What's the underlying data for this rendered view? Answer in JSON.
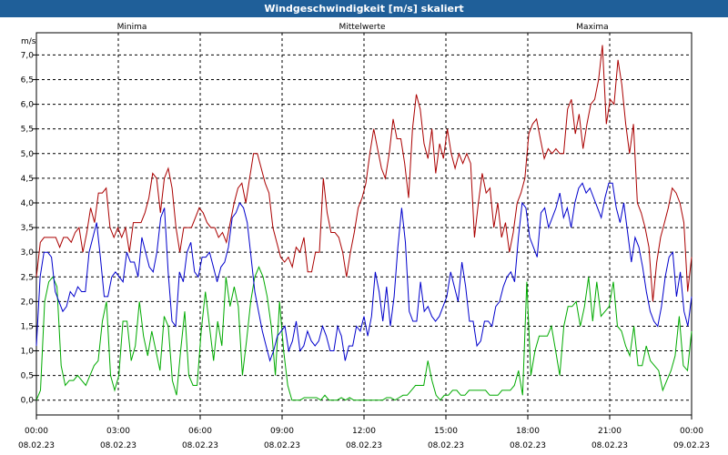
{
  "window": {
    "title": "Windgeschwindigkeit [m/s] skaliert"
  },
  "chart_data": {
    "type": "line",
    "title": "Windgeschwindigkeit [m/s] skaliert",
    "ylabel": "m/s",
    "ylim": [
      -0.3,
      7.45
    ],
    "xlim": [
      0,
      24
    ],
    "grid": true,
    "legend": "top",
    "yticks": [
      "0,0",
      "0,5",
      "1,0",
      "1,5",
      "2,0",
      "2,5",
      "3,0",
      "3,5",
      "4,0",
      "4,5",
      "5,0",
      "5,5",
      "6,0",
      "6,5",
      "7,0"
    ],
    "xticks": [
      {
        "time": "00:00",
        "date": "08.02.23"
      },
      {
        "time": "03:00",
        "date": "08.02.23"
      },
      {
        "time": "06:00",
        "date": "08.02.23"
      },
      {
        "time": "09:00",
        "date": "08.02.23"
      },
      {
        "time": "12:00",
        "date": "08.02.23"
      },
      {
        "time": "15:00",
        "date": "08.02.23"
      },
      {
        "time": "18:00",
        "date": "08.02.23"
      },
      {
        "time": "21:00",
        "date": "08.02.23"
      },
      {
        "time": "00:00",
        "date": "09.02.23"
      }
    ],
    "series": [
      {
        "name": "Minima",
        "color": "#00aa00",
        "values": [
          0.0,
          0.2,
          2.0,
          2.4,
          2.5,
          2.3,
          0.7,
          0.3,
          0.4,
          0.4,
          0.5,
          0.4,
          0.3,
          0.5,
          0.7,
          0.8,
          1.6,
          2.0,
          0.5,
          0.2,
          0.5,
          1.6,
          1.6,
          0.8,
          1.1,
          2.0,
          1.3,
          0.9,
          1.4,
          1.0,
          0.6,
          1.7,
          1.5,
          0.4,
          0.1,
          1.0,
          1.8,
          0.5,
          0.3,
          0.3,
          1.4,
          2.2,
          1.5,
          0.8,
          1.6,
          1.1,
          2.5,
          1.9,
          2.3,
          1.9,
          0.5,
          1.2,
          2.0,
          2.5,
          2.7,
          2.5,
          2.1,
          1.5,
          0.5,
          2.0,
          1.0,
          0.3,
          0.0,
          0.0,
          0.0,
          0.05,
          0.05,
          0.05,
          0.05,
          0.0,
          0.1,
          0.0,
          0.0,
          0.0,
          0.05,
          0.0,
          0.05,
          0.0,
          0.0,
          0.0,
          0.0,
          0.0,
          0.0,
          0.0,
          0.0,
          0.05,
          0.05,
          0.0,
          0.05,
          0.1,
          0.1,
          0.2,
          0.3,
          0.3,
          0.3,
          0.8,
          0.4,
          0.1,
          0.0,
          0.1,
          0.1,
          0.2,
          0.2,
          0.1,
          0.1,
          0.2,
          0.2,
          0.2,
          0.2,
          0.2,
          0.1,
          0.1,
          0.1,
          0.2,
          0.2,
          0.2,
          0.3,
          0.6,
          0.1,
          2.4,
          0.5,
          1.0,
          1.3,
          1.3,
          1.3,
          1.5,
          1.0,
          0.5,
          1.5,
          1.9,
          1.9,
          2.0,
          1.5,
          1.9,
          2.5,
          1.6,
          2.4,
          1.7,
          1.8,
          1.9,
          2.4,
          1.5,
          1.4,
          1.1,
          0.9,
          1.5,
          0.7,
          0.7,
          1.1,
          0.8,
          0.7,
          0.6,
          0.2,
          0.4,
          0.6,
          0.9,
          1.7,
          0.7,
          0.6,
          1.4
        ]
      },
      {
        "name": "Mittelwerte",
        "color": "#0000cc",
        "values": [
          1.1,
          2.5,
          3.0,
          3.0,
          2.9,
          2.2,
          2.0,
          1.8,
          1.9,
          2.2,
          2.1,
          2.3,
          2.2,
          2.2,
          3.0,
          3.3,
          3.6,
          2.9,
          2.1,
          2.1,
          2.5,
          2.6,
          2.5,
          2.4,
          3.0,
          2.8,
          2.8,
          2.5,
          3.3,
          3.0,
          2.7,
          2.6,
          3.0,
          3.7,
          3.9,
          2.6,
          1.6,
          1.5,
          2.6,
          2.4,
          3.0,
          3.2,
          2.6,
          2.5,
          2.9,
          2.9,
          3.0,
          2.7,
          2.4,
          2.7,
          2.8,
          3.1,
          3.7,
          3.8,
          4.0,
          3.9,
          3.6,
          2.9,
          2.2,
          1.8,
          1.4,
          1.1,
          0.8,
          1.0,
          1.3,
          1.4,
          1.5,
          1.0,
          1.2,
          1.6,
          1.0,
          1.1,
          1.4,
          1.2,
          1.1,
          1.2,
          1.5,
          1.3,
          1.0,
          1.0,
          1.5,
          1.3,
          0.8,
          1.1,
          1.1,
          1.5,
          1.4,
          1.7,
          1.3,
          1.7,
          2.6,
          2.2,
          1.6,
          2.3,
          1.5,
          2.1,
          3.1,
          3.9,
          3.2,
          1.8,
          1.6,
          1.6,
          2.4,
          1.8,
          1.9,
          1.7,
          1.6,
          1.7,
          1.9,
          2.1,
          2.6,
          2.3,
          2.0,
          2.8,
          2.3,
          1.6,
          1.6,
          1.1,
          1.2,
          1.6,
          1.6,
          1.5,
          1.9,
          2.0,
          2.3,
          2.5,
          2.6,
          2.4,
          3.3,
          4.0,
          3.9,
          3.3,
          3.1,
          2.9,
          3.8,
          3.9,
          3.5,
          3.7,
          3.9,
          4.2,
          3.7,
          3.9,
          3.5,
          4.0,
          4.3,
          4.4,
          4.2,
          4.3,
          4.1,
          3.9,
          3.7,
          4.1,
          4.4,
          4.4,
          3.9,
          3.6,
          4.0,
          3.4,
          2.8,
          3.3,
          3.1,
          2.7,
          2.2,
          1.8,
          1.6,
          1.5,
          1.9,
          2.5,
          2.9,
          3.0,
          2.1,
          2.6,
          1.8,
          1.5,
          2.1
        ]
      },
      {
        "name": "Maxima",
        "color": "#aa0000",
        "values": [
          2.5,
          3.2,
          3.3,
          3.3,
          3.3,
          3.3,
          3.1,
          3.3,
          3.3,
          3.2,
          3.4,
          3.5,
          3.0,
          3.4,
          3.9,
          3.6,
          4.2,
          4.2,
          4.3,
          3.5,
          3.3,
          3.5,
          3.3,
          3.5,
          3.0,
          3.6,
          3.6,
          3.6,
          3.8,
          4.1,
          4.6,
          4.5,
          3.8,
          4.5,
          4.7,
          4.3,
          3.5,
          3.0,
          3.5,
          3.5,
          3.5,
          3.7,
          3.9,
          3.8,
          3.6,
          3.5,
          3.5,
          3.3,
          3.4,
          3.2,
          3.6,
          4.0,
          4.3,
          4.4,
          4.0,
          4.5,
          5.0,
          5.0,
          4.7,
          4.4,
          4.2,
          3.5,
          3.2,
          2.9,
          2.8,
          2.9,
          2.7,
          3.1,
          3.0,
          3.3,
          2.6,
          2.6,
          3.0,
          3.0,
          4.5,
          3.8,
          3.4,
          3.4,
          3.3,
          3.0,
          2.5,
          3.0,
          3.4,
          3.9,
          4.1,
          4.4,
          5.0,
          5.5,
          5.1,
          4.7,
          4.5,
          5.0,
          5.7,
          5.3,
          5.3,
          4.8,
          4.1,
          5.5,
          6.2,
          5.9,
          5.2,
          4.9,
          5.5,
          4.6,
          5.2,
          4.9,
          5.5,
          5.0,
          4.7,
          5.0,
          4.8,
          5.0,
          4.8,
          3.3,
          4.0,
          4.6,
          4.2,
          4.3,
          3.5,
          4.0,
          3.3,
          3.6,
          3.0,
          3.4,
          4.0,
          4.2,
          4.5,
          5.4,
          5.6,
          5.7,
          5.3,
          4.9,
          5.1,
          5.0,
          5.1,
          5.0,
          5.0,
          5.9,
          6.1,
          5.4,
          5.8,
          5.1,
          5.6,
          6.0,
          6.1,
          6.5,
          7.2,
          5.6,
          6.1,
          6.0,
          6.9,
          6.4,
          5.6,
          5.0,
          5.6,
          4.0,
          3.8,
          3.5,
          3.1,
          2.0,
          2.8,
          3.3,
          3.6,
          3.9,
          4.3,
          4.2,
          4.0,
          3.6,
          2.2,
          2.9
        ]
      }
    ]
  }
}
